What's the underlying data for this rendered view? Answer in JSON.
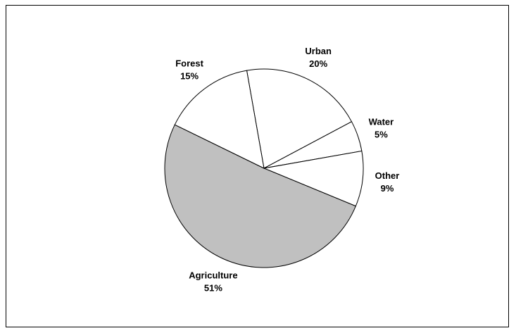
{
  "chart_data": {
    "type": "pie",
    "slices": [
      {
        "label": "Urban",
        "value_label": "20%",
        "value": 20,
        "color": "#ffffff"
      },
      {
        "label": "Water",
        "value_label": "5%",
        "value": 5,
        "color": "#ffffff"
      },
      {
        "label": "Other",
        "value_label": "9%",
        "value": 9,
        "color": "#ffffff"
      },
      {
        "label": "Agriculture",
        "value_label": "51%",
        "value": 51,
        "color": "#c0c0c0"
      },
      {
        "label": "Forest",
        "value_label": "15%",
        "value": 15,
        "color": "#ffffff"
      }
    ],
    "start_angle_deg": -100,
    "direction": "clockwise",
    "outline_color": "#000000",
    "legend": "none",
    "labels": "outside"
  }
}
